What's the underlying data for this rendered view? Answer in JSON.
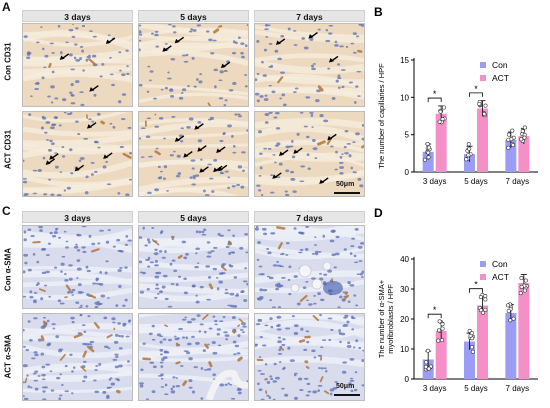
{
  "panels": {
    "A": {
      "letter": "A",
      "columns": [
        "3 days",
        "5 days",
        "7 days"
      ],
      "rows": [
        "Con  CD31",
        "ACT  CD31"
      ],
      "scale": "50μm",
      "arrow_counts": [
        [
          3,
          3,
          3
        ],
        [
          5,
          8,
          5
        ]
      ]
    },
    "C": {
      "letter": "C",
      "columns": [
        "3 days",
        "5 days",
        "7 days"
      ],
      "rows": [
        "Con  α-SMA",
        "ACT  α-SMA"
      ],
      "scale": "50μm"
    }
  },
  "colors": {
    "con": "#9b9cf5",
    "act": "#f48fc8",
    "tissue_a": "#ecd9bf",
    "tissue_c": "#d9dced",
    "brown": "#b5753a",
    "nuclei": "#5a6fb5"
  },
  "chart_data": [
    {
      "letter": "B",
      "type": "bar",
      "ylabel": "The number of capillaries / HPF",
      "categories": [
        "3 days",
        "5 days",
        "7 days"
      ],
      "ylim": [
        0,
        15
      ],
      "yticks": [
        0,
        5,
        10,
        15
      ],
      "legend": "top-right",
      "series": [
        {
          "name": "Con",
          "values": [
            2.7,
            2.4,
            4.3
          ]
        },
        {
          "name": "ACT",
          "values": [
            7.8,
            8.5,
            4.8
          ]
        }
      ],
      "significance": [
        "*",
        "*",
        ""
      ]
    },
    {
      "letter": "D",
      "type": "bar",
      "ylabel": "The number of α-SMA+ myofibroblasts / HPF",
      "categories": [
        "3 days",
        "5 days",
        "7 days"
      ],
      "ylim": [
        0,
        40
      ],
      "yticks": [
        0,
        10,
        20,
        30,
        40
      ],
      "legend": "top-right",
      "series": [
        {
          "name": "Con",
          "values": [
            6.5,
            12.5,
            22
          ]
        },
        {
          "name": "ACT",
          "values": [
            16,
            24.5,
            32
          ]
        }
      ],
      "significance": [
        "*",
        "*",
        ""
      ]
    }
  ]
}
